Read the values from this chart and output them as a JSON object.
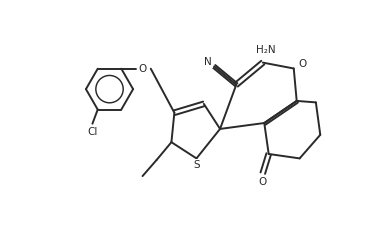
{
  "bg_color": "#ffffff",
  "line_color": "#2a2a2a",
  "line_width": 1.4,
  "figsize": [
    3.9,
    2.49
  ],
  "dpi": 100,
  "xlim": [
    -1.0,
    9.5
  ],
  "ylim": [
    -1.2,
    7.2
  ]
}
